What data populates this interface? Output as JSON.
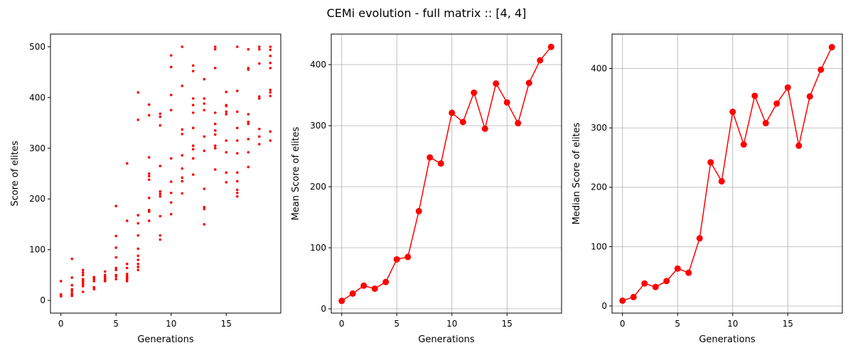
{
  "figure": {
    "suptitle": "CEMi evolution  - full matrix :: [4, 4]"
  },
  "chart_data": [
    {
      "type": "scatter",
      "xlabel": "Generations",
      "ylabel": "Score of elites",
      "xlim": [
        -0.95,
        19.95
      ],
      "ylim": [
        -25,
        525
      ],
      "xticks": [
        0,
        5,
        10,
        15
      ],
      "yticks": [
        0,
        100,
        200,
        300,
        400,
        500
      ],
      "grid": false,
      "color": "#ff0000",
      "points": [
        [
          0,
          8
        ],
        [
          0,
          10
        ],
        [
          0,
          12
        ],
        [
          0,
          38
        ],
        [
          1,
          9
        ],
        [
          1,
          11
        ],
        [
          1,
          13
        ],
        [
          1,
          18
        ],
        [
          1,
          22
        ],
        [
          1,
          30
        ],
        [
          1,
          45
        ],
        [
          1,
          82
        ],
        [
          2,
          17
        ],
        [
          2,
          28
        ],
        [
          2,
          32
        ],
        [
          2,
          36
        ],
        [
          2,
          39
        ],
        [
          2,
          42
        ],
        [
          2,
          50
        ],
        [
          2,
          55
        ],
        [
          2,
          60
        ],
        [
          3,
          22
        ],
        [
          3,
          24
        ],
        [
          3,
          26
        ],
        [
          3,
          38
        ],
        [
          3,
          42
        ],
        [
          3,
          44
        ],
        [
          3,
          46
        ],
        [
          4,
          38
        ],
        [
          4,
          40
        ],
        [
          4,
          43
        ],
        [
          4,
          46
        ],
        [
          4,
          50
        ],
        [
          4,
          57
        ],
        [
          5,
          42
        ],
        [
          5,
          47
        ],
        [
          5,
          50
        ],
        [
          5,
          60
        ],
        [
          5,
          64
        ],
        [
          5,
          85
        ],
        [
          5,
          104
        ],
        [
          5,
          127
        ],
        [
          5,
          186
        ],
        [
          6,
          38
        ],
        [
          6,
          42
        ],
        [
          6,
          45
        ],
        [
          6,
          48
        ],
        [
          6,
          52
        ],
        [
          6,
          64
        ],
        [
          6,
          72
        ],
        [
          6,
          157
        ],
        [
          6,
          270
        ],
        [
          7,
          60
        ],
        [
          7,
          66
        ],
        [
          7,
          72
        ],
        [
          7,
          80
        ],
        [
          7,
          88
        ],
        [
          7,
          102
        ],
        [
          7,
          128
        ],
        [
          7,
          152
        ],
        [
          7,
          168
        ],
        [
          7,
          356
        ],
        [
          7,
          410
        ],
        [
          8,
          157
        ],
        [
          8,
          175
        ],
        [
          8,
          178
        ],
        [
          8,
          202
        ],
        [
          8,
          238
        ],
        [
          8,
          245
        ],
        [
          8,
          250
        ],
        [
          8,
          282
        ],
        [
          8,
          365
        ],
        [
          8,
          386
        ],
        [
          9,
          120
        ],
        [
          9,
          128
        ],
        [
          9,
          166
        ],
        [
          9,
          205
        ],
        [
          9,
          210
        ],
        [
          9,
          215
        ],
        [
          9,
          265
        ],
        [
          9,
          345
        ],
        [
          9,
          362
        ],
        [
          9,
          368
        ],
        [
          10,
          170
        ],
        [
          10,
          193
        ],
        [
          10,
          212
        ],
        [
          10,
          234
        ],
        [
          10,
          280
        ],
        [
          10,
          375
        ],
        [
          10,
          405
        ],
        [
          10,
          460
        ],
        [
          10,
          483
        ],
        [
          11,
          211
        ],
        [
          11,
          235
        ],
        [
          11,
          242
        ],
        [
          11,
          260
        ],
        [
          11,
          286
        ],
        [
          11,
          328
        ],
        [
          11,
          337
        ],
        [
          11,
          423
        ],
        [
          11,
          500
        ],
        [
          12,
          248
        ],
        [
          12,
          280
        ],
        [
          12,
          298
        ],
        [
          12,
          305
        ],
        [
          12,
          340
        ],
        [
          12,
          370
        ],
        [
          12,
          385
        ],
        [
          12,
          398
        ],
        [
          12,
          452
        ],
        [
          12,
          463
        ],
        [
          13,
          150
        ],
        [
          13,
          180
        ],
        [
          13,
          184
        ],
        [
          13,
          220
        ],
        [
          13,
          295
        ],
        [
          13,
          323
        ],
        [
          13,
          375
        ],
        [
          13,
          388
        ],
        [
          13,
          398
        ],
        [
          13,
          436
        ],
        [
          14,
          258
        ],
        [
          14,
          300
        ],
        [
          14,
          305
        ],
        [
          14,
          327
        ],
        [
          14,
          335
        ],
        [
          14,
          348
        ],
        [
          14,
          370
        ],
        [
          14,
          458
        ],
        [
          14,
          495
        ],
        [
          14,
          500
        ],
        [
          15,
          233
        ],
        [
          15,
          252
        ],
        [
          15,
          292
        ],
        [
          15,
          315
        ],
        [
          15,
          367
        ],
        [
          15,
          372
        ],
        [
          15,
          383
        ],
        [
          15,
          385
        ],
        [
          15,
          411
        ],
        [
          16,
          205
        ],
        [
          16,
          212
        ],
        [
          16,
          218
        ],
        [
          16,
          235
        ],
        [
          16,
          252
        ],
        [
          16,
          290
        ],
        [
          16,
          315
        ],
        [
          16,
          340
        ],
        [
          16,
          372
        ],
        [
          16,
          413
        ],
        [
          16,
          500
        ],
        [
          17,
          263
        ],
        [
          17,
          292
        ],
        [
          17,
          318
        ],
        [
          17,
          348
        ],
        [
          17,
          352
        ],
        [
          17,
          367
        ],
        [
          17,
          455
        ],
        [
          17,
          458
        ],
        [
          17,
          495
        ],
        [
          18,
          308
        ],
        [
          18,
          323
        ],
        [
          18,
          338
        ],
        [
          18,
          398
        ],
        [
          18,
          402
        ],
        [
          18,
          467
        ],
        [
          18,
          495
        ],
        [
          18,
          500
        ],
        [
          19,
          315
        ],
        [
          19,
          333
        ],
        [
          19,
          403
        ],
        [
          19,
          410
        ],
        [
          19,
          415
        ],
        [
          19,
          458
        ],
        [
          19,
          468
        ],
        [
          19,
          482
        ],
        [
          19,
          494
        ],
        [
          19,
          500
        ]
      ]
    },
    {
      "type": "line",
      "xlabel": "Generations",
      "ylabel": "Mean Score of elites",
      "xlim": [
        -0.95,
        19.95
      ],
      "ylim": [
        -7,
        450
      ],
      "xticks": [
        0,
        5,
        10,
        15
      ],
      "yticks": [
        0,
        100,
        200,
        300,
        400
      ],
      "grid": true,
      "color": "#ff0000",
      "x": [
        0,
        1,
        2,
        3,
        4,
        5,
        6,
        7,
        8,
        9,
        10,
        11,
        12,
        13,
        14,
        15,
        16,
        17,
        18,
        19
      ],
      "y": [
        13,
        25,
        38,
        33,
        44,
        81,
        85,
        160,
        248,
        238,
        321,
        306,
        354,
        295,
        369,
        338,
        304,
        370,
        407,
        429
      ]
    },
    {
      "type": "line",
      "xlabel": "Generations",
      "ylabel": "Median Score of elites",
      "xlim": [
        -0.95,
        19.95
      ],
      "ylim": [
        -12,
        458
      ],
      "xticks": [
        0,
        5,
        10,
        15
      ],
      "yticks": [
        0,
        100,
        200,
        300,
        400
      ],
      "grid": true,
      "color": "#ff0000",
      "x": [
        0,
        1,
        2,
        3,
        4,
        5,
        6,
        7,
        8,
        9,
        10,
        11,
        12,
        13,
        14,
        15,
        16,
        17,
        18,
        19
      ],
      "y": [
        9,
        15,
        38,
        32,
        42,
        63,
        56,
        114,
        242,
        210,
        327,
        272,
        354,
        308,
        341,
        368,
        270,
        353,
        398,
        436
      ]
    }
  ]
}
